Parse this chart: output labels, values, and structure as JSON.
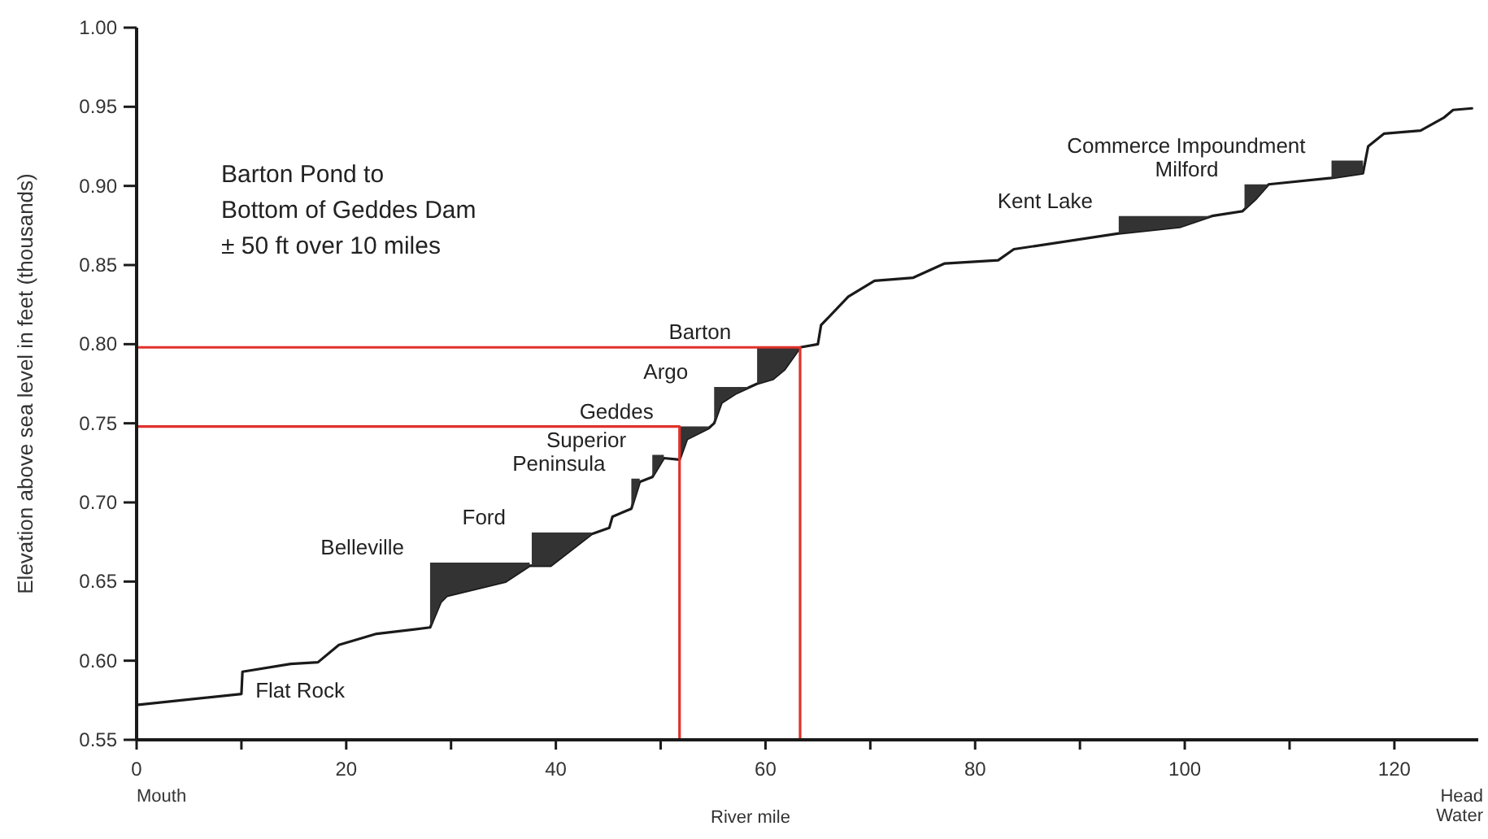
{
  "chart_data": {
    "type": "line",
    "xlabel": "River mile",
    "ylabel": "Elevation above sea level in feet (thousands)",
    "xlim": [
      0,
      128
    ],
    "ylim": [
      0.55,
      1.0
    ],
    "xticks": [
      0,
      {
        "value": 10,
        "label": null
      },
      20,
      {
        "value": 30,
        "label": null
      },
      40,
      {
        "value": 50,
        "label": null
      },
      60,
      {
        "value": 70,
        "label": null
      },
      80,
      {
        "value": 90,
        "label": null
      },
      100,
      {
        "value": 110,
        "label": null
      },
      120
    ],
    "yticks": [
      {
        "value": 0.55,
        "label": "0.55"
      },
      {
        "value": 0.6,
        "label": "0.60"
      },
      {
        "value": 0.65,
        "label": "0.65"
      },
      {
        "value": 0.7,
        "label": "0.70"
      },
      {
        "value": 0.75,
        "label": "0.75"
      },
      {
        "value": 0.8,
        "label": "0.80"
      },
      {
        "value": 0.85,
        "label": "0.85"
      },
      {
        "value": 0.9,
        "label": "0.90"
      },
      {
        "value": 0.95,
        "label": "0.95"
      },
      {
        "value": 1.0,
        "label": "1.00"
      }
    ],
    "series": [
      {
        "color": "#1a1a1a",
        "x": [
          0,
          10,
          10.1,
          14.7,
          17.3,
          19.3,
          22.9,
          28,
          29,
          29.6,
          35.2,
          37.5,
          39.5,
          43.4,
          45.1,
          45.4,
          47.2,
          48,
          49.2,
          50.3,
          51.8,
          52.5,
          54.6,
          55.1,
          55.8,
          57.2,
          59.2,
          60.7,
          61.8,
          63.3,
          65,
          65.3,
          67.9,
          70.4,
          74.1,
          77.1,
          82.2,
          83.7,
          93.7,
          99.5,
          102.6,
          105.5,
          106.8,
          108,
          114,
          117,
          117.5,
          119,
          122.5,
          124.7,
          125.6,
          127.4
        ],
        "values": [
          0.572,
          0.579,
          0.593,
          0.598,
          0.599,
          0.61,
          0.617,
          0.621,
          0.637,
          0.641,
          0.65,
          0.66,
          0.66,
          0.68,
          0.684,
          0.691,
          0.696,
          0.713,
          0.716,
          0.728,
          0.727,
          0.74,
          0.747,
          0.75,
          0.763,
          0.769,
          0.775,
          0.778,
          0.784,
          0.798,
          0.8,
          0.812,
          0.83,
          0.84,
          0.842,
          0.851,
          0.853,
          0.86,
          0.87,
          0.874,
          0.881,
          0.884,
          0.892,
          0.901,
          0.905,
          0.908,
          0.925,
          0.933,
          0.935,
          0.943,
          0.948,
          0.949
        ]
      },
      {
        "type": "area",
        "color": "#333333",
        "x": [
          28,
          37.5
        ],
        "values": [
          0.662,
          0.662
        ]
      },
      {
        "type": "area",
        "color": "#333333",
        "x": [
          37.7,
          43.4
        ],
        "values": [
          0.681,
          0.681
        ]
      },
      {
        "type": "area",
        "color": "#333333",
        "x": [
          47.2,
          48
        ],
        "values": [
          0.715,
          0.715
        ]
      },
      {
        "type": "area",
        "color": "#333333",
        "x": [
          49.2,
          50.3
        ],
        "values": [
          0.73,
          0.73
        ]
      },
      {
        "type": "area",
        "color": "#333333",
        "x": [
          51.8,
          54.6
        ],
        "values": [
          0.748,
          0.748
        ]
      },
      {
        "type": "area",
        "color": "#333333",
        "x": [
          55.1,
          59.2
        ],
        "values": [
          0.773,
          0.773
        ]
      },
      {
        "type": "area",
        "color": "#333333",
        "x": [
          59.2,
          63.3
        ],
        "values": [
          0.798,
          0.798
        ]
      },
      {
        "type": "area",
        "color": "#333333",
        "x": [
          93.7,
          102.6
        ],
        "values": [
          0.881,
          0.881
        ]
      },
      {
        "type": "area",
        "color": "#333333",
        "x": [
          105.7,
          108
        ],
        "values": [
          0.901,
          0.901
        ]
      },
      {
        "type": "area",
        "color": "#333333",
        "x": [
          114,
          117
        ],
        "values": [
          0.916,
          0.916
        ]
      },
      {
        "color": "#e0312b",
        "x": [
          0,
          63.3,
          63.3
        ],
        "values": [
          0.798,
          0.798,
          0.55
        ]
      },
      {
        "color": "#e0312b",
        "x": [
          0,
          51.8,
          51.8
        ],
        "values": [
          0.748,
          0.748,
          0.55
        ]
      }
    ],
    "annotations": [
      "Barton Pond to\nBottom of Geddes Dam\n± 50 ft over 10 miles",
      "Mouth",
      "Head Water",
      {
        "text": "Flat Rock",
        "x": 10.1,
        "y": 0.593
      },
      {
        "text": "Belleville",
        "x": 28,
        "y": 0.662
      },
      {
        "text": "Ford",
        "x": 37.7,
        "y": 0.681
      },
      {
        "text": "Peninsula",
        "x": 47.2,
        "y": 0.715
      },
      {
        "text": "Superior",
        "x": 49.2,
        "y": 0.73
      },
      {
        "text": "Geddes",
        "x": 51.8,
        "y": 0.748
      },
      {
        "text": "Argo",
        "x": 55.1,
        "y": 0.773
      },
      {
        "text": "Barton",
        "x": 59.2,
        "y": 0.798
      },
      {
        "text": "Kent Lake",
        "x": 93.7,
        "y": 0.881
      },
      {
        "text": "Milford",
        "x": 105.7,
        "y": 0.901
      },
      {
        "text": "Commerce Impoundment",
        "x": 114,
        "y": 0.916
      }
    ]
  }
}
